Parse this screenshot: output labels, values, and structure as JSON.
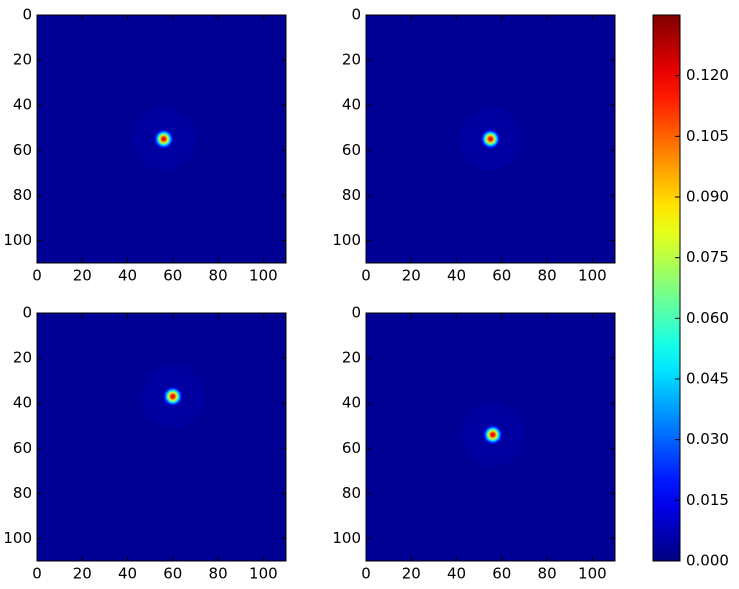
{
  "chart_data": [
    {
      "type": "heatmap",
      "colormap": "jet",
      "xlim": [
        0,
        110
      ],
      "ylim": [
        0,
        110
      ],
      "y_inverted": true,
      "xticks": [
        0,
        20,
        40,
        60,
        80,
        100
      ],
      "yticks": [
        0,
        20,
        40,
        60,
        80,
        100
      ],
      "points": [
        {
          "x": 56,
          "y": 55,
          "value": 0.13
        }
      ]
    },
    {
      "type": "heatmap",
      "colormap": "jet",
      "xlim": [
        0,
        110
      ],
      "ylim": [
        0,
        110
      ],
      "y_inverted": true,
      "xticks": [
        0,
        20,
        40,
        60,
        80,
        100
      ],
      "yticks": [
        0,
        20,
        40,
        60,
        80,
        100
      ],
      "points": [
        {
          "x": 55,
          "y": 55,
          "value": 0.13
        }
      ]
    },
    {
      "type": "heatmap",
      "colormap": "jet",
      "xlim": [
        0,
        110
      ],
      "ylim": [
        0,
        110
      ],
      "y_inverted": true,
      "xticks": [
        0,
        20,
        40,
        60,
        80,
        100
      ],
      "yticks": [
        0,
        20,
        40,
        60,
        80,
        100
      ],
      "points": [
        {
          "x": 60,
          "y": 37,
          "value": 0.13
        }
      ]
    },
    {
      "type": "heatmap",
      "colormap": "jet",
      "xlim": [
        0,
        110
      ],
      "ylim": [
        0,
        110
      ],
      "y_inverted": true,
      "xticks": [
        0,
        20,
        40,
        60,
        80,
        100
      ],
      "yticks": [
        0,
        20,
        40,
        60,
        80,
        100
      ],
      "points": [
        {
          "x": 56,
          "y": 54,
          "value": 0.13
        }
      ]
    },
    {
      "type": "colorbar",
      "colormap": "jet",
      "ylim": [
        0,
        0.135
      ],
      "yticks": [
        {
          "value": 0,
          "label": "0.000"
        },
        {
          "value": 0.015,
          "label": "0.015"
        },
        {
          "value": 0.03,
          "label": "0.030"
        },
        {
          "value": 0.045,
          "label": "0.045"
        },
        {
          "value": 0.06,
          "label": "0.060"
        },
        {
          "value": 0.075,
          "label": "0.075"
        },
        {
          "value": 0.09,
          "label": "0.090"
        },
        {
          "value": 0.105,
          "label": "0.105"
        },
        {
          "value": 0.12,
          "label": "0.120"
        }
      ]
    }
  ]
}
